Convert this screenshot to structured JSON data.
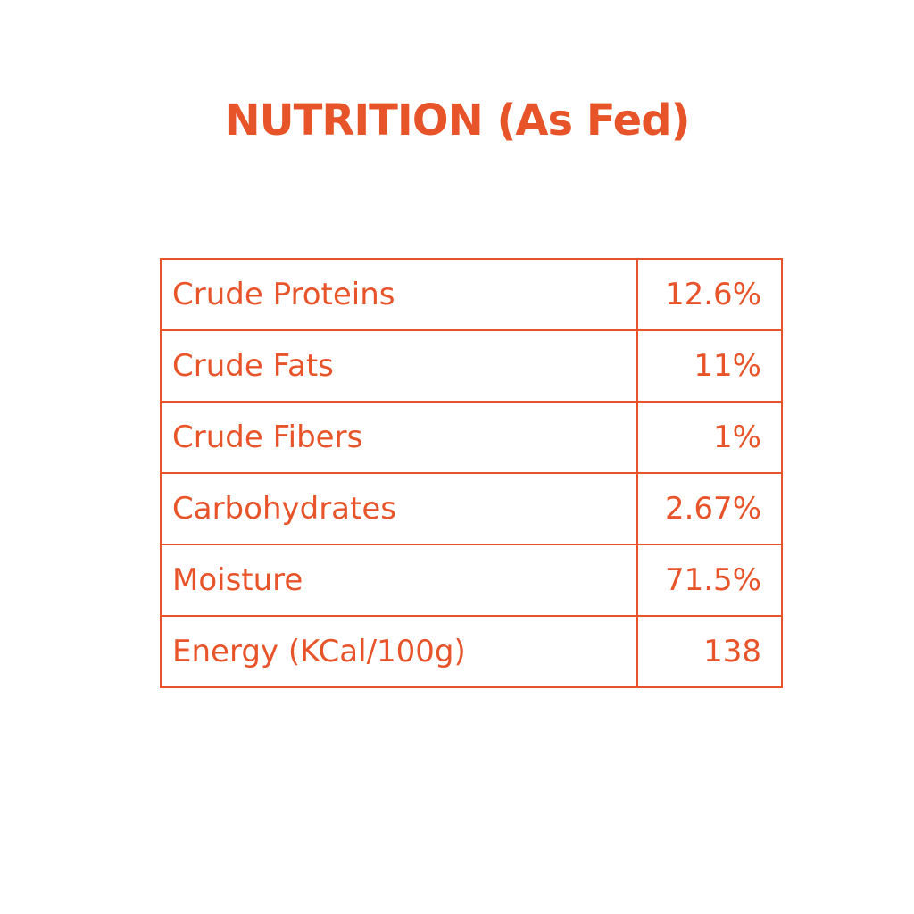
{
  "header": {
    "title": "NUTRITION (As Fed)"
  },
  "table": {
    "rows": [
      [
        "Crude Proteins",
        "12.6%"
      ],
      [
        "Crude Fats",
        "11%"
      ],
      [
        "Crude Fibers",
        "1%"
      ],
      [
        "Carbohydrates",
        "2.67%"
      ],
      [
        "Moisture",
        "71.5%"
      ],
      [
        "Energy (KCal/100g)",
        "138"
      ]
    ]
  }
}
